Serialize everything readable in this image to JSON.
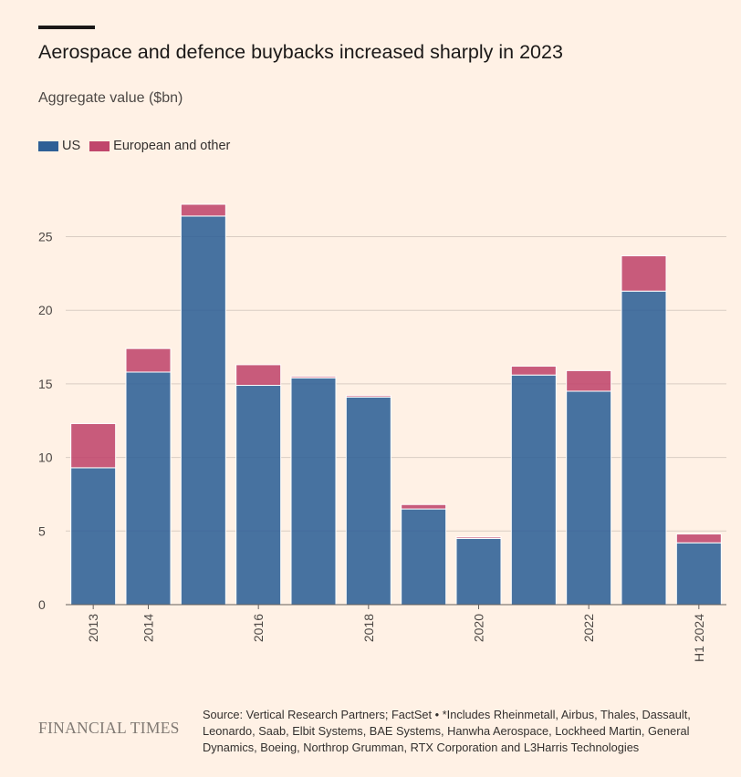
{
  "chart_data": {
    "type": "bar",
    "stacked": true,
    "title": "Aerospace and defence buybacks increased sharply in 2023",
    "subtitle": "Aggregate value ($bn)",
    "xlabel": "",
    "ylabel": "",
    "ylim": [
      0,
      28
    ],
    "yticks": [
      0,
      5,
      10,
      15,
      20,
      25
    ],
    "grid": true,
    "categories": [
      "2013",
      "2014",
      "2015",
      "2016",
      "2017",
      "2018",
      "2019",
      "2020",
      "2021",
      "2022",
      "2023",
      "H1 2024"
    ],
    "tick_labels": [
      "2013",
      "2014",
      "",
      "2016",
      "",
      "2018",
      "",
      "2020",
      "",
      "2022",
      "",
      "H1 2024"
    ],
    "series": [
      {
        "name": "US",
        "color": "#2e6096",
        "values": [
          9.3,
          15.8,
          26.4,
          14.9,
          15.4,
          14.1,
          6.5,
          4.5,
          15.6,
          14.5,
          21.3,
          4.2
        ]
      },
      {
        "name": "European and other",
        "color": "#c0466c",
        "values": [
          3.0,
          1.6,
          0.8,
          1.4,
          0.1,
          0.1,
          0.3,
          0.1,
          0.6,
          1.4,
          2.4,
          0.6
        ]
      }
    ],
    "legend_position": "top-left"
  },
  "footer": {
    "brand": "FINANCIAL TIMES",
    "source": "Source: Vertical Research Partners; FactSet • *Includes Rheinmetall, Airbus, Thales, Dassault, Leonardo, Saab, Elbit Systems, BAE Systems, Hanwha Aerospace, Lockheed Martin, General Dynamics, Boeing, Northrop Grumman, RTX Corporation and L3Harris Technologies"
  }
}
